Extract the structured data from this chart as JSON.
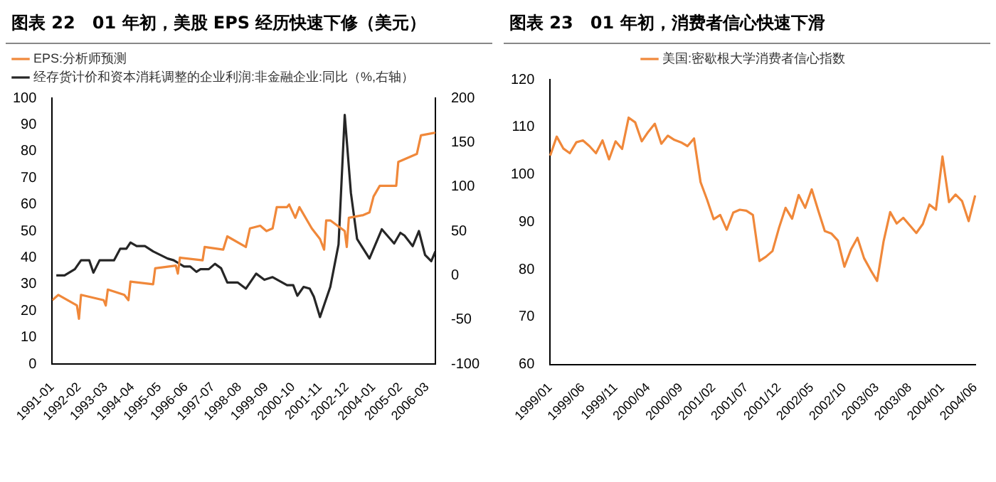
{
  "chart_data": [
    {
      "type": "line",
      "title": "图表 22　01 年初，美股 EPS 经历快速下修（美元）",
      "legend": "top left",
      "marker": "none",
      "line_style": "solid",
      "grid": false,
      "xlim": [
        "1991-01",
        "2006-07"
      ],
      "xticks": [
        "1991-01",
        "1992-02",
        "1993-03",
        "1994-04",
        "1995-05",
        "1996-06",
        "1997-07",
        "1998-08",
        "1999-09",
        "2000-10",
        "2001-11",
        "2002-12",
        "2004-01",
        "2005-02",
        "2006-03"
      ],
      "ylim": [
        0,
        100
      ],
      "yticks": [
        0,
        10,
        20,
        30,
        40,
        50,
        60,
        70,
        80,
        90,
        100
      ],
      "y2lim": [
        -100,
        200
      ],
      "y2ticks": [
        -100,
        -50,
        0,
        50,
        100,
        150,
        200
      ],
      "series": [
        {
          "name": "EPS:分析师预测",
          "color": "#f0883a",
          "x": [
            "1991-01",
            "1991-04",
            "1992-01",
            "1992-02",
            "1992-03",
            "1993-02",
            "1993-03",
            "1993-04",
            "1993-12",
            "1994-02",
            "1994-03",
            "1995-02",
            "1995-03",
            "1996-01",
            "1996-02",
            "1996-03",
            "1997-02",
            "1997-03",
            "1997-12",
            "1998-02",
            "1998-11",
            "1999-01",
            "1999-06",
            "1999-09",
            "1999-12",
            "2000-02",
            "2000-07",
            "2000-08",
            "2000-11",
            "2001-01",
            "2001-07",
            "2001-11",
            "2002-01",
            "2002-02",
            "2002-04",
            "2002-11",
            "2002-12",
            "2003-01",
            "2003-08",
            "2003-11",
            "2004-01",
            "2004-04",
            "2004-12",
            "2005-01",
            "2005-07",
            "2005-10",
            "2005-12",
            "2006-07"
          ],
          "values": [
            24,
            26,
            22,
            17,
            26,
            24,
            22,
            28,
            26,
            24,
            31,
            30,
            36,
            37,
            34,
            40,
            39,
            44,
            43,
            48,
            44,
            51,
            52,
            50,
            51,
            59,
            59,
            60,
            55,
            59,
            51,
            47,
            43,
            54,
            54,
            50,
            44,
            55,
            56,
            57,
            63,
            67,
            67,
            76,
            78,
            79,
            86,
            87
          ]
        },
        {
          "name": "经存货计价和资本消耗调整的企业利润:非金融企业:同比（%,右轴）",
          "color": "#262626",
          "axis": "y2",
          "x": [
            "1991-03",
            "1991-07",
            "1991-12",
            "1992-03",
            "1992-07",
            "1992-09",
            "1992-12",
            "1993-07",
            "1993-10",
            "1994-01",
            "1994-03",
            "1994-06",
            "1994-10",
            "1995-02",
            "1995-09",
            "1995-12",
            "1996-05",
            "1996-08",
            "1996-11",
            "1997-01",
            "1997-05",
            "1997-08",
            "1997-11",
            "1998-02",
            "1998-07",
            "1998-11",
            "1999-04",
            "1999-08",
            "1999-12",
            "2000-07",
            "2000-10",
            "2000-12",
            "2001-03",
            "2001-06",
            "2001-08",
            "2001-11",
            "2002-04",
            "2002-06",
            "2002-08",
            "2002-11",
            "2003-02",
            "2003-05",
            "2003-11",
            "2004-05",
            "2004-11",
            "2005-02",
            "2005-04",
            "2005-08",
            "2005-11",
            "2006-02",
            "2006-05",
            "2006-07"
          ],
          "values": [
            0,
            0,
            7,
            17,
            17,
            3,
            17,
            17,
            30,
            30,
            37,
            33,
            33,
            27,
            19,
            17,
            10,
            10,
            4,
            7,
            7,
            13,
            8,
            -8,
            -8,
            -15,
            2,
            -5,
            -2,
            -11,
            -11,
            -23,
            -13,
            -15,
            -24,
            -47,
            -13,
            11,
            35,
            181,
            93,
            41,
            19,
            52,
            36,
            48,
            45,
            33,
            50,
            23,
            16,
            27
          ]
        }
      ]
    },
    {
      "type": "line",
      "title": "图表 23　01 年初，消费者信心快速下滑",
      "legend": "top",
      "marker": "none",
      "line_style": "solid",
      "grid": false,
      "categories": [
        "1999/01",
        null,
        null,
        null,
        null,
        "1999/06",
        null,
        null,
        null,
        null,
        "1999/11",
        null,
        null,
        null,
        null,
        "2000/04",
        null,
        null,
        null,
        null,
        "2000/09",
        null,
        null,
        null,
        null,
        "2001/02",
        null,
        null,
        null,
        null,
        "2001/07",
        null,
        null,
        null,
        null,
        "2001/12",
        null,
        null,
        null,
        null,
        "2002/05",
        null,
        null,
        null,
        null,
        "2002/10",
        null,
        null,
        null,
        null,
        "2003/03",
        null,
        null,
        null,
        null,
        "2003/08",
        null,
        null,
        null,
        null,
        "2004/01",
        null,
        null,
        null,
        null,
        "2004/06"
      ],
      "ylim": [
        60,
        120
      ],
      "yticks": [
        60,
        70,
        80,
        90,
        100,
        110,
        120
      ],
      "series": [
        {
          "name": "美国:密歇根大学消费者信心指数",
          "color": "#f0883a",
          "values": [
            104,
            108,
            105.5,
            104.5,
            106.8,
            107.2,
            106,
            104.5,
            107.2,
            103.2,
            107,
            105.4,
            112,
            111,
            107,
            109,
            110.7,
            106.5,
            108.2,
            107.3,
            106.8,
            106,
            107.6,
            98.4,
            94.7,
            90.6,
            91.5,
            88.4,
            92,
            92.6,
            92.4,
            91.5,
            81.8,
            82.7,
            83.9,
            88.8,
            93,
            90.7,
            95.7,
            93,
            96.9,
            92.4,
            88.1,
            87.6,
            86.1,
            80.6,
            84.2,
            86.7,
            82.4,
            79.9,
            77.6,
            86,
            92.1,
            89.7,
            90.9,
            89.3,
            87.7,
            89.6,
            93.7,
            92.6,
            103.8,
            94.2,
            95.8,
            94.4,
            90.2,
            95.6
          ]
        }
      ]
    }
  ]
}
